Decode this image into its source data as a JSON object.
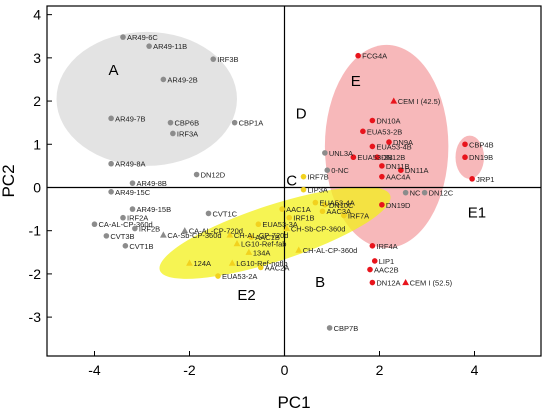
{
  "chart_data": {
    "type": "scatter",
    "xlabel": "PC1",
    "ylabel": "PC2",
    "xlim": [
      -5,
      5.4
    ],
    "ylim": [
      -3.9,
      4.2
    ],
    "xticks": [
      -4,
      -2,
      0,
      2,
      4
    ],
    "yticks": [
      -3,
      -2,
      -1,
      0,
      1,
      2,
      3,
      4
    ],
    "tick_labels_x": [
      "-4",
      "-2",
      "0",
      "2",
      "4"
    ],
    "tick_labels_y": [
      "-3",
      "-2",
      "-1",
      "0",
      "1",
      "2",
      "3",
      "4"
    ],
    "colors": {
      "gray_point": "#8c8c8c",
      "red_point": "#e8141c",
      "yellow_point": "#f2d21e",
      "gray_region": "#d9d9d9",
      "red_region": "#f4a0a3",
      "yellow_region": "#f3f01a"
    },
    "regions": [
      {
        "label": "A",
        "cx": -2.9,
        "cy": 2.05,
        "rx": 1.9,
        "ry": 1.55,
        "angle": 0,
        "color": "#d9d9d9"
      },
      {
        "label": "E",
        "cx": 2.15,
        "cy": 0.95,
        "rx": 1.3,
        "ry": 2.35,
        "angle": 0,
        "color": "#f4a0a3"
      },
      {
        "label": "E1",
        "cx": 3.9,
        "cy": 0.7,
        "rx": 0.3,
        "ry": 0.5,
        "angle": 0,
        "color": "#f4a0a3"
      },
      {
        "label": "B",
        "cx": -0.2,
        "cy": -1.05,
        "rx": 2.55,
        "ry": 0.65,
        "angle": 18,
        "color": "#f3f01a"
      }
    ],
    "region_labels": [
      {
        "text": "A",
        "x": -3.6,
        "y": 2.6
      },
      {
        "text": "E",
        "x": 1.5,
        "y": 2.35
      },
      {
        "text": "D",
        "x": 0.35,
        "y": 1.6
      },
      {
        "text": "C",
        "x": 0.15,
        "y": 0.05
      },
      {
        "text": "B",
        "x": 0.75,
        "y": -2.3
      },
      {
        "text": "E1",
        "x": 4.05,
        "y": -0.7
      },
      {
        "text": "E2",
        "x": -0.8,
        "y": -2.6
      }
    ],
    "series": [
      {
        "marker": "circle",
        "color": "#8c8c8c",
        "points": [
          {
            "label": "AR49-6C",
            "x": -3.4,
            "y": 3.48
          },
          {
            "label": "AR49-11B",
            "x": -2.85,
            "y": 3.27
          },
          {
            "label": "IRF3B",
            "x": -1.5,
            "y": 2.97
          },
          {
            "label": "AR49-2B",
            "x": -2.55,
            "y": 2.5
          },
          {
            "label": "AR49-7B",
            "x": -3.65,
            "y": 1.6
          },
          {
            "label": "CBP6B",
            "x": -2.4,
            "y": 1.5
          },
          {
            "label": "CBP1A",
            "x": -1.05,
            "y": 1.5
          },
          {
            "label": "IRF3A",
            "x": -2.35,
            "y": 1.25
          },
          {
            "label": "DN12D",
            "x": -1.85,
            "y": 0.3
          },
          {
            "label": "AR49-8A",
            "x": -3.65,
            "y": 0.55
          },
          {
            "label": "AR49-8B",
            "x": -3.2,
            "y": 0.1
          },
          {
            "label": "AR49-15C",
            "x": -3.65,
            "y": -0.1
          },
          {
            "label": "AR49-15B",
            "x": -3.2,
            "y": -0.5
          },
          {
            "label": "IRF2A",
            "x": -3.4,
            "y": -0.7
          },
          {
            "label": "IRF2B",
            "x": -3.15,
            "y": -0.95
          },
          {
            "label": "CA-AL-CP-360d",
            "x": -4.0,
            "y": -0.85
          },
          {
            "label": "CVT3B",
            "x": -3.75,
            "y": -1.12
          },
          {
            "label": "CVT1B",
            "x": -3.35,
            "y": -1.35
          },
          {
            "label": "CVT1C",
            "x": -1.6,
            "y": -0.6
          },
          {
            "label": "UNL3A",
            "x": 0.85,
            "y": 0.8
          },
          {
            "label": "0-NC",
            "x": 0.9,
            "y": 0.4
          },
          {
            "label": "NC",
            "x": 2.55,
            "y": -0.12
          },
          {
            "label": "DN12C",
            "x": 2.95,
            "y": -0.12
          },
          {
            "label": "CBP7B",
            "x": 0.95,
            "y": -3.25
          }
        ]
      },
      {
        "marker": "triangle",
        "color": "#8c8c8c",
        "points": [
          {
            "label": "CA-AL-CP-720d",
            "x": -2.1,
            "y": -1.0
          },
          {
            "label": "CA-Sb-CP-360d",
            "x": -2.55,
            "y": -1.1
          }
        ]
      },
      {
        "marker": "circle",
        "color": "#e8141c",
        "points": [
          {
            "label": "FCG4A",
            "x": 1.55,
            "y": 3.05
          },
          {
            "label": "DN10A",
            "x": 1.85,
            "y": 1.55
          },
          {
            "label": "EUA53-2B",
            "x": 1.65,
            "y": 1.3
          },
          {
            "label": "DN9A",
            "x": 2.2,
            "y": 1.05
          },
          {
            "label": "EUA53-4B",
            "x": 1.85,
            "y": 0.95
          },
          {
            "label": "DN12B",
            "x": 1.95,
            "y": 0.7
          },
          {
            "label": "EUA53-3B",
            "x": 1.45,
            "y": 0.7
          },
          {
            "label": "DN11B",
            "x": 2.05,
            "y": 0.5
          },
          {
            "label": "DN11A",
            "x": 2.45,
            "y": 0.4
          },
          {
            "label": "AAC4A",
            "x": 2.05,
            "y": 0.25
          },
          {
            "label": "DN19D",
            "x": 2.05,
            "y": -0.4
          },
          {
            "label": "CBP4B",
            "x": 3.8,
            "y": 1.0
          },
          {
            "label": "DN19B",
            "x": 3.8,
            "y": 0.7
          },
          {
            "label": "JRP1",
            "x": 3.95,
            "y": 0.2
          },
          {
            "label": "IRF4A",
            "x": 1.85,
            "y": -1.35
          },
          {
            "label": "LIP1",
            "x": 1.9,
            "y": -1.7
          },
          {
            "label": "AAC2B",
            "x": 1.8,
            "y": -1.9
          },
          {
            "label": "DN12A",
            "x": 1.85,
            "y": -2.2
          }
        ]
      },
      {
        "marker": "triangle",
        "color": "#e8141c",
        "points": [
          {
            "label": "CEM I (42.5)",
            "x": 2.3,
            "y": 2.0
          },
          {
            "label": "CEM I (52.5)",
            "x": 2.55,
            "y": -2.2
          }
        ]
      },
      {
        "marker": "circle",
        "color": "#f2d21e",
        "points": [
          {
            "label": "LIP3A",
            "x": 0.4,
            "y": -0.05
          },
          {
            "label": "EUA53-4A",
            "x": 0.65,
            "y": -0.35
          },
          {
            "label": "DN10C",
            "x": 0.85,
            "y": -0.4
          },
          {
            "label": "IRF1B",
            "x": 0.1,
            "y": -0.7
          },
          {
            "label": "IRF7B",
            "x": 0.4,
            "y": 0.25
          },
          {
            "label": "IRF7A",
            "x": 1.25,
            "y": -0.65
          },
          {
            "label": "AAC3A",
            "x": 0.8,
            "y": -0.55
          },
          {
            "label": "AAC1A",
            "x": -0.05,
            "y": -0.5
          },
          {
            "label": "EUA53-3A",
            "x": -0.55,
            "y": -0.85
          },
          {
            "label": "AAC1B",
            "x": -0.7,
            "y": -1.15
          },
          {
            "label": "AAC2A",
            "x": -0.5,
            "y": -1.85
          },
          {
            "label": "EUA53-2A",
            "x": -1.4,
            "y": -2.05
          }
        ]
      },
      {
        "marker": "triangle",
        "color": "#f2d21e",
        "points": [
          {
            "label": "CH-Sb-CP-360d",
            "x": 0.05,
            "y": -0.95
          },
          {
            "label": "CH-AL-CP-360d",
            "x": 0.3,
            "y": -1.45
          },
          {
            "label": "CH-AL-CP-720d",
            "x": -1.15,
            "y": -1.1
          },
          {
            "label": "LG10-Ref-fab",
            "x": -1.0,
            "y": -1.3
          },
          {
            "label": "134A",
            "x": -0.75,
            "y": -1.5
          },
          {
            "label": "LG10-Ref-noflb",
            "x": -1.1,
            "y": -1.75
          },
          {
            "label": "124A",
            "x": -2.0,
            "y": -1.75
          }
        ]
      }
    ]
  }
}
